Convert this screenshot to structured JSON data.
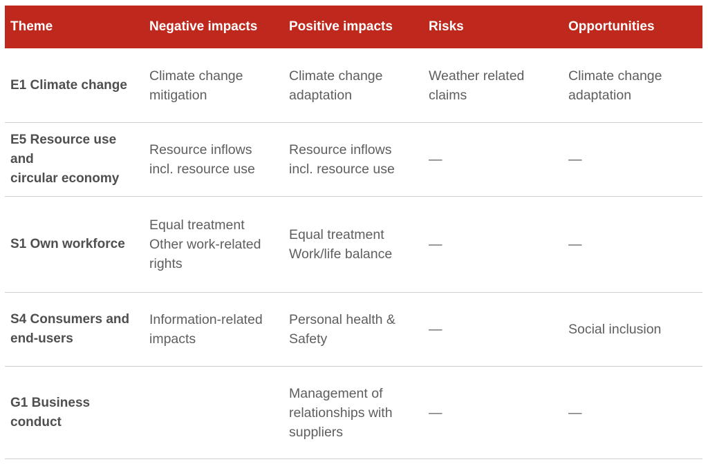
{
  "colors": {
    "header_bg": "#be281d",
    "header_text": "#ffffff",
    "body_text": "#5e5e5e",
    "row_divider": "#cfcfcf"
  },
  "headers": [
    "Theme",
    "Negative impacts",
    "Positive impacts",
    "Risks",
    "Opportunities"
  ],
  "rows": [
    {
      "theme": "E1 Climate change",
      "negative": "Climate change\nmitigation",
      "positive": "Climate change\nadaptation",
      "risks": "Weather related\nclaims",
      "opportunities": "Climate change\nadaptation"
    },
    {
      "theme": "E5 Resource use and\ncircular economy",
      "negative": "Resource inflows\nincl. resource use",
      "positive": "Resource inflows\nincl. resource use",
      "risks": "—",
      "opportunities": "—"
    },
    {
      "theme": "S1 Own workforce",
      "negative": "Equal treatment\nOther work-related\nrights",
      "positive": "Equal treatment\nWork/life balance",
      "risks": "—",
      "opportunities": "—"
    },
    {
      "theme": "S4 Consumers and\nend-users",
      "negative": "Information-related\nimpacts",
      "positive": "Personal health &\nSafety",
      "risks": "—",
      "opportunities": "Social inclusion"
    },
    {
      "theme": "G1 Business\nconduct",
      "negative": "",
      "positive": "Management of\nrelationships with\nsuppliers",
      "risks": "—",
      "opportunities": "—"
    }
  ]
}
